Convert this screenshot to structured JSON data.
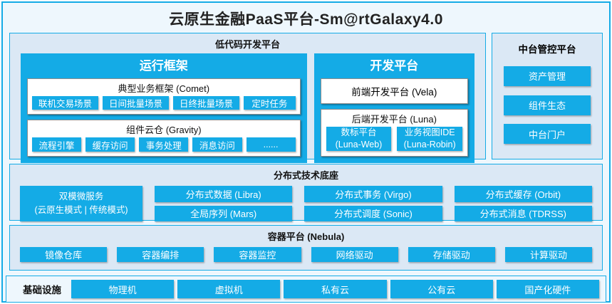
{
  "title": "云原生金融PaaS平台-Sm@rtGalaxy4.0",
  "colors": {
    "accent": "#14abe6",
    "section_bg": "#dbe8f5",
    "page_bg": "#eef7fd",
    "panel_bg": "#ffffff"
  },
  "lowcode": {
    "label": "低代码开发平台",
    "runtime": {
      "title": "运行框架",
      "comet": {
        "label": "典型业务框架 (Comet)",
        "items": [
          "联机交易场景",
          "日间批量场景",
          "日终批量场景",
          "定时任务"
        ]
      },
      "gravity": {
        "label": "组件云仓 (Gravity)",
        "items": [
          "流程引擎",
          "缓存访问",
          "事务处理",
          "消息访问",
          "......"
        ]
      }
    },
    "dev": {
      "title": "开发平台",
      "vela_label": "前端开发平台 (Vela)",
      "luna": {
        "label": "后端开发平台 (Luna)",
        "items": [
          {
            "line1": "数标平台",
            "line2": "(Luna-Web)"
          },
          {
            "line1": "业务视图IDE",
            "line2": "(Luna-Robin)"
          }
        ]
      }
    }
  },
  "midplatform": {
    "label": "中台管控平台",
    "items": [
      "资产管理",
      "组件生态",
      "中台门户"
    ]
  },
  "distributed": {
    "label": "分布式技术底座",
    "dual_mode": {
      "line1": "双模微服务",
      "line2": "(云原生模式 | 传统模式)"
    },
    "row1": [
      "分布式数据 (Libra)",
      "分布式事务 (Virgo)",
      "分布式缓存 (Orbit)"
    ],
    "row2": [
      "全局序列 (Mars)",
      "分布式调度 (Sonic)",
      "分布式消息 (TDRSS)"
    ]
  },
  "container_platform": {
    "label": "容器平台 (Nebula)",
    "items": [
      "镜像仓库",
      "容器编排",
      "容器监控",
      "网络驱动",
      "存储驱动",
      "计算驱动"
    ]
  },
  "infrastructure": {
    "label": "基础设施",
    "items": [
      "物理机",
      "虚拟机",
      "私有云",
      "公有云",
      "国产化硬件"
    ]
  }
}
